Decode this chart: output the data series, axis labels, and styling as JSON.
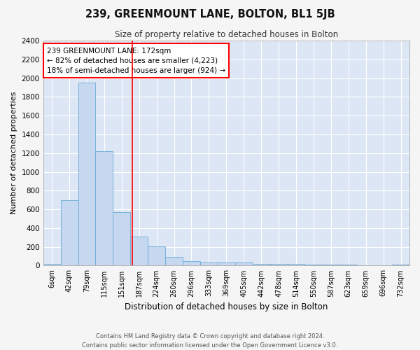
{
  "title": "239, GREENMOUNT LANE, BOLTON, BL1 5JB",
  "subtitle": "Size of property relative to detached houses in Bolton",
  "xlabel": "Distribution of detached houses by size in Bolton",
  "ylabel": "Number of detached properties",
  "bar_color": "#c5d8f0",
  "bar_edge_color": "#6aaad4",
  "background_color": "#dce6f5",
  "grid_color": "#ffffff",
  "fig_background": "#f5f5f5",
  "bin_labels": [
    "6sqm",
    "42sqm",
    "79sqm",
    "115sqm",
    "151sqm",
    "187sqm",
    "224sqm",
    "260sqm",
    "296sqm",
    "333sqm",
    "369sqm",
    "405sqm",
    "442sqm",
    "478sqm",
    "514sqm",
    "550sqm",
    "587sqm",
    "623sqm",
    "659sqm",
    "696sqm",
    "732sqm"
  ],
  "bar_heights": [
    20,
    700,
    1950,
    1220,
    570,
    310,
    205,
    90,
    45,
    35,
    30,
    33,
    20,
    15,
    20,
    10,
    10,
    10,
    5,
    5,
    10
  ],
  "ylim": [
    0,
    2400
  ],
  "yticks": [
    0,
    200,
    400,
    600,
    800,
    1000,
    1200,
    1400,
    1600,
    1800,
    2000,
    2200,
    2400
  ],
  "red_line_x": 4.62,
  "annotation_title": "239 GREENMOUNT LANE: 172sqm",
  "annotation_line1": "← 82% of detached houses are smaller (4,223)",
  "annotation_line2": "18% of semi-detached houses are larger (924) →",
  "footnote1": "Contains HM Land Registry data © Crown copyright and database right 2024.",
  "footnote2": "Contains public sector information licensed under the Open Government Licence v3.0."
}
